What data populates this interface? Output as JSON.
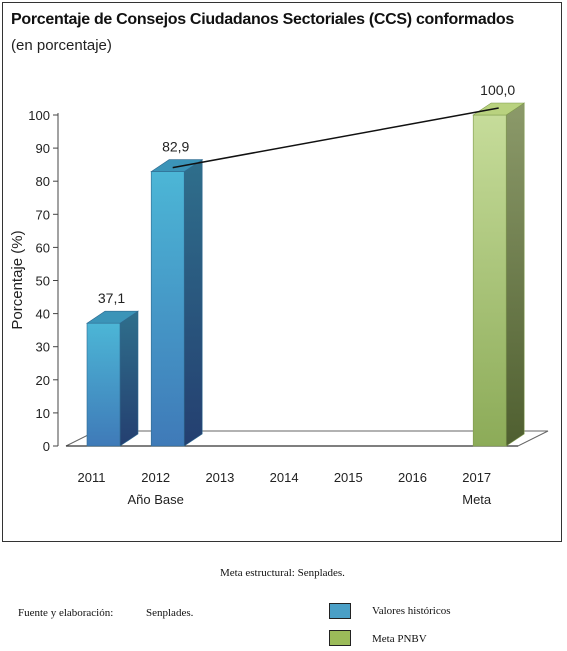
{
  "chart_data": {
    "type": "bar",
    "title": "Porcentaje de Consejos Ciudadanos Sectoriales (CCS)  conformados",
    "subtitle": "(en porcentaje)",
    "ylabel": "Porcentaje (%)",
    "ylim": [
      0,
      100
    ],
    "yticks": [
      0,
      10,
      20,
      30,
      40,
      50,
      60,
      70,
      80,
      90,
      100
    ],
    "categories": [
      "2011",
      "2012",
      "2013",
      "2014",
      "2015",
      "2016",
      "2017"
    ],
    "category_sublabels": [
      "",
      "Año Base",
      "",
      "",
      "",
      "",
      "Meta"
    ],
    "values": [
      37.1,
      82.9,
      null,
      null,
      null,
      null,
      100.0
    ],
    "value_labels": [
      "37,1",
      "82,9",
      "",
      "",
      "",
      "",
      "100,0"
    ],
    "bar_kinds": [
      "historico",
      "historico",
      "",
      "",
      "",
      "",
      "meta"
    ],
    "trend_line": {
      "from_category": "2012",
      "to_category": "2017"
    },
    "colors": {
      "historico": "#4aa3c8",
      "meta": "#a8c07a"
    },
    "grid": false
  },
  "footer": {
    "meta_estructural": "Meta estructural: Senplades.",
    "fuente_label": "Fuente y elaboración:",
    "fuente_value": "Senplades.",
    "legend": [
      {
        "label": "Valores históricos",
        "color": "#4a9fc6"
      },
      {
        "label": "Meta PNBV",
        "color": "#9bbb59"
      }
    ]
  }
}
